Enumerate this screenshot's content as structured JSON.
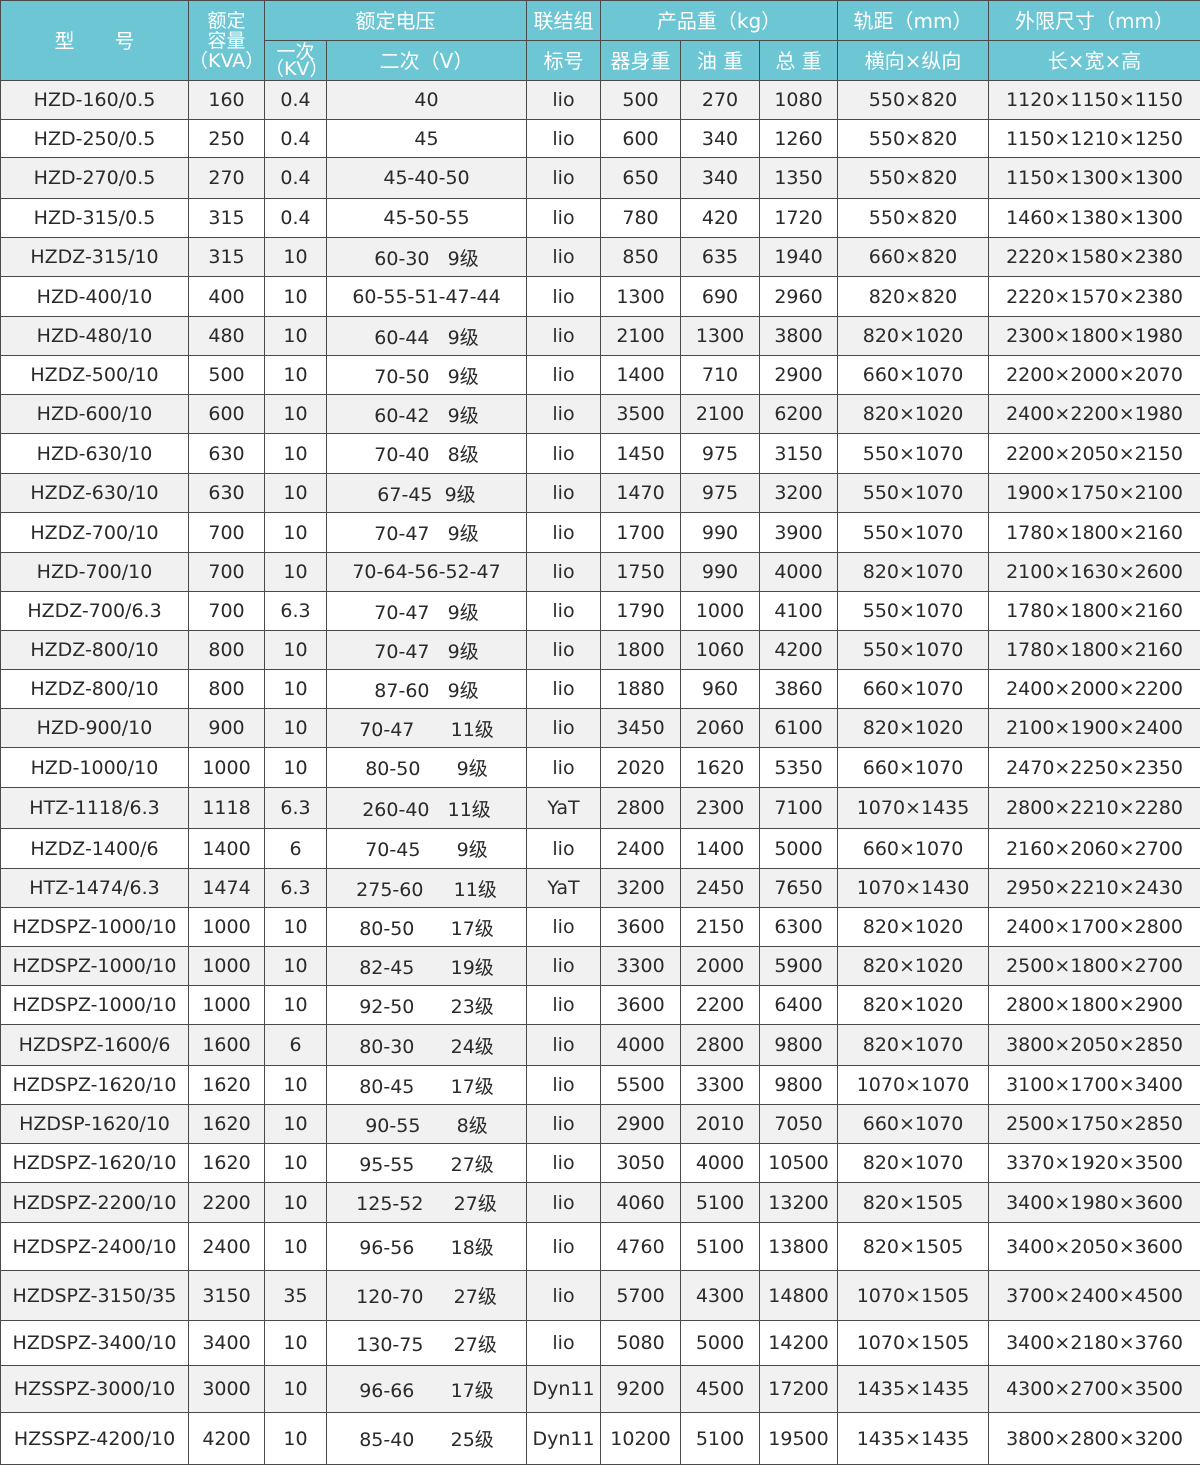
{
  "header": {
    "model": "型　　号",
    "capacity": "额定\n容量\n（KVA）",
    "rated_voltage": "额定电压",
    "primary": "一次\n（KV）",
    "secondary": "二次（V）",
    "connection_top": "联结组",
    "connection_bottom": "标号",
    "weight": "产品重（kg）",
    "body_weight": "器身重",
    "oil_weight": "油 重",
    "total_weight": "总 重",
    "gauge": "轨距（mm）",
    "gauge_sub": "横向×纵向",
    "dimensions": "外限尺寸（mm）",
    "dimensions_sub": "长×宽×高"
  },
  "rows": [
    [
      "HZD-160/0.5",
      "160",
      "0.4",
      "40",
      "lio",
      "500",
      "270",
      "1080",
      "550×820",
      "1120×1150×1150"
    ],
    [
      "HZD-250/0.5",
      "250",
      "0.4",
      "45",
      "lio",
      "600",
      "340",
      "1260",
      "550×820",
      "1150×1210×1250"
    ],
    [
      "HZD-270/0.5",
      "270",
      "0.4",
      "45-40-50",
      "lio",
      "650",
      "340",
      "1350",
      "550×820",
      "1150×1300×1300"
    ],
    [
      "HZD-315/0.5",
      "315",
      "0.4",
      "45-50-55",
      "lio",
      "780",
      "420",
      "1720",
      "550×820",
      "1460×1380×1300"
    ],
    [
      "HZDZ-315/10",
      "315",
      "10",
      "60-30   9级",
      "lio",
      "850",
      "635",
      "1940",
      "660×820",
      "2220×1580×2380"
    ],
    [
      "HZD-400/10",
      "400",
      "10",
      "60-55-51-47-44",
      "lio",
      "1300",
      "690",
      "2960",
      "820×820",
      "2220×1570×2380"
    ],
    [
      "HZD-480/10",
      "480",
      "10",
      "60-44   9级",
      "lio",
      "2100",
      "1300",
      "3800",
      "820×1020",
      "2300×1800×1980"
    ],
    [
      "HZDZ-500/10",
      "500",
      "10",
      "70-50   9级",
      "lio",
      "1400",
      "710",
      "2900",
      "660×1070",
      "2200×2000×2070"
    ],
    [
      "HZD-600/10",
      "600",
      "10",
      "60-42   9级",
      "lio",
      "3500",
      "2100",
      "6200",
      "820×1020",
      "2400×2200×1980"
    ],
    [
      "HZD-630/10",
      "630",
      "10",
      "70-40   8级",
      "lio",
      "1450",
      "975",
      "3150",
      "550×1070",
      "2200×2050×2150"
    ],
    [
      "HZDZ-630/10",
      "630",
      "10",
      "67-45  9级",
      "lio",
      "1470",
      "975",
      "3200",
      "550×1070",
      "1900×1750×2100"
    ],
    [
      "HZDZ-700/10",
      "700",
      "10",
      "70-47   9级",
      "lio",
      "1700",
      "990",
      "3900",
      "550×1070",
      "1780×1800×2160"
    ],
    [
      "HZD-700/10",
      "700",
      "10",
      "70-64-56-52-47",
      "lio",
      "1750",
      "990",
      "4000",
      "820×1070",
      "2100×1630×2600"
    ],
    [
      "HZDZ-700/6.3",
      "700",
      "6.3",
      "70-47   9级",
      "lio",
      "1790",
      "1000",
      "4100",
      "550×1070",
      "1780×1800×2160"
    ],
    [
      "HZDZ-800/10",
      "800",
      "10",
      "70-47   9级",
      "lio",
      "1800",
      "1060",
      "4200",
      "550×1070",
      "1780×1800×2160"
    ],
    [
      "HZDZ-800/10",
      "800",
      "10",
      "87-60   9级",
      "lio",
      "1880",
      "960",
      "3860",
      "660×1070",
      "2400×2000×2200"
    ],
    [
      "HZD-900/10",
      "900",
      "10",
      "70-47      11级",
      "lio",
      "3450",
      "2060",
      "6100",
      "820×1020",
      "2100×1900×2400"
    ],
    [
      "HZD-1000/10",
      "1000",
      "10",
      "80-50      9级",
      "lio",
      "2020",
      "1620",
      "5350",
      "660×1070",
      "2470×2250×2350"
    ],
    [
      "HTZ-1118/6.3",
      "1118",
      "6.3",
      "260-40   11级",
      "YaT",
      "2800",
      "2300",
      "7100",
      "1070×1435",
      "2800×2210×2280"
    ],
    [
      "HZDZ-1400/6",
      "1400",
      "6",
      "70-45      9级",
      "lio",
      "2400",
      "1400",
      "5000",
      "660×1070",
      "2160×2060×2700"
    ],
    [
      "HTZ-1474/6.3",
      "1474",
      "6.3",
      "275-60     11级",
      "YaT",
      "3200",
      "2450",
      "7650",
      "1070×1430",
      "2950×2210×2430"
    ],
    [
      "HZDSPZ-1000/10",
      "1000",
      "10",
      "80-50      17级",
      "lio",
      "3600",
      "2150",
      "6300",
      "820×1020",
      "2400×1700×2800"
    ],
    [
      "HZDSPZ-1000/10",
      "1000",
      "10",
      "82-45      19级",
      "lio",
      "3300",
      "2000",
      "5900",
      "820×1020",
      "2500×1800×2700"
    ],
    [
      "HZDSPZ-1000/10",
      "1000",
      "10",
      "92-50      23级",
      "lio",
      "3600",
      "2200",
      "6400",
      "820×1020",
      "2800×1800×2900"
    ],
    [
      "HZDSPZ-1600/6",
      "1600",
      "6",
      "80-30      24级",
      "lio",
      "4000",
      "2800",
      "9800",
      "820×1070",
      "3800×2050×2850"
    ],
    [
      "HZDSPZ-1620/10",
      "1620",
      "10",
      "80-45      17级",
      "lio",
      "5500",
      "3300",
      "9800",
      "1070×1070",
      "3100×1700×3400"
    ],
    [
      "HZDSP-1620/10",
      "1620",
      "10",
      "90-55      8级",
      "lio",
      "2900",
      "2010",
      "7050",
      "660×1070",
      "2500×1750×2850"
    ],
    [
      "HZDSPZ-1620/10",
      "1620",
      "10",
      "95-55      27级",
      "lio",
      "3050",
      "4000",
      "10500",
      "820×1070",
      "3370×1920×3500"
    ],
    [
      "HZDSPZ-2200/10",
      "2200",
      "10",
      "125-52     27级",
      "lio",
      "4060",
      "5100",
      "13200",
      "820×1505",
      "3400×1980×3600"
    ],
    [
      "HZDSPZ-2400/10",
      "2400",
      "10",
      "96-56      18级",
      "lio",
      "4760",
      "5100",
      "13800",
      "820×1505",
      "3400×2050×3600"
    ],
    [
      "HZDSPZ-3150/35",
      "3150",
      "35",
      "120-70     27级",
      "lio",
      "5700",
      "4300",
      "14800",
      "1070×1505",
      "3700×2400×4500"
    ],
    [
      "HZDSPZ-3400/10",
      "3400",
      "10",
      "130-75     27级",
      "lio",
      "5080",
      "5000",
      "14200",
      "1070×1505",
      "3400×2180×3760"
    ],
    [
      "HZSSPZ-3000/10",
      "3000",
      "10",
      "96-66      17级",
      "Dyn11",
      "9200",
      "4500",
      "17200",
      "1435×1435",
      "4300×2700×3500"
    ],
    [
      "HZSSPZ-4200/10",
      "4200",
      "10",
      "85-40      25级",
      "Dyn11",
      "10200",
      "5100",
      "19500",
      "1435×1435",
      "3800×2800×3200"
    ]
  ],
  "colors": {
    "header_bg": "#6cc6d4",
    "row_alt": "#f1f1f1",
    "border": "#4a4a4a"
  }
}
